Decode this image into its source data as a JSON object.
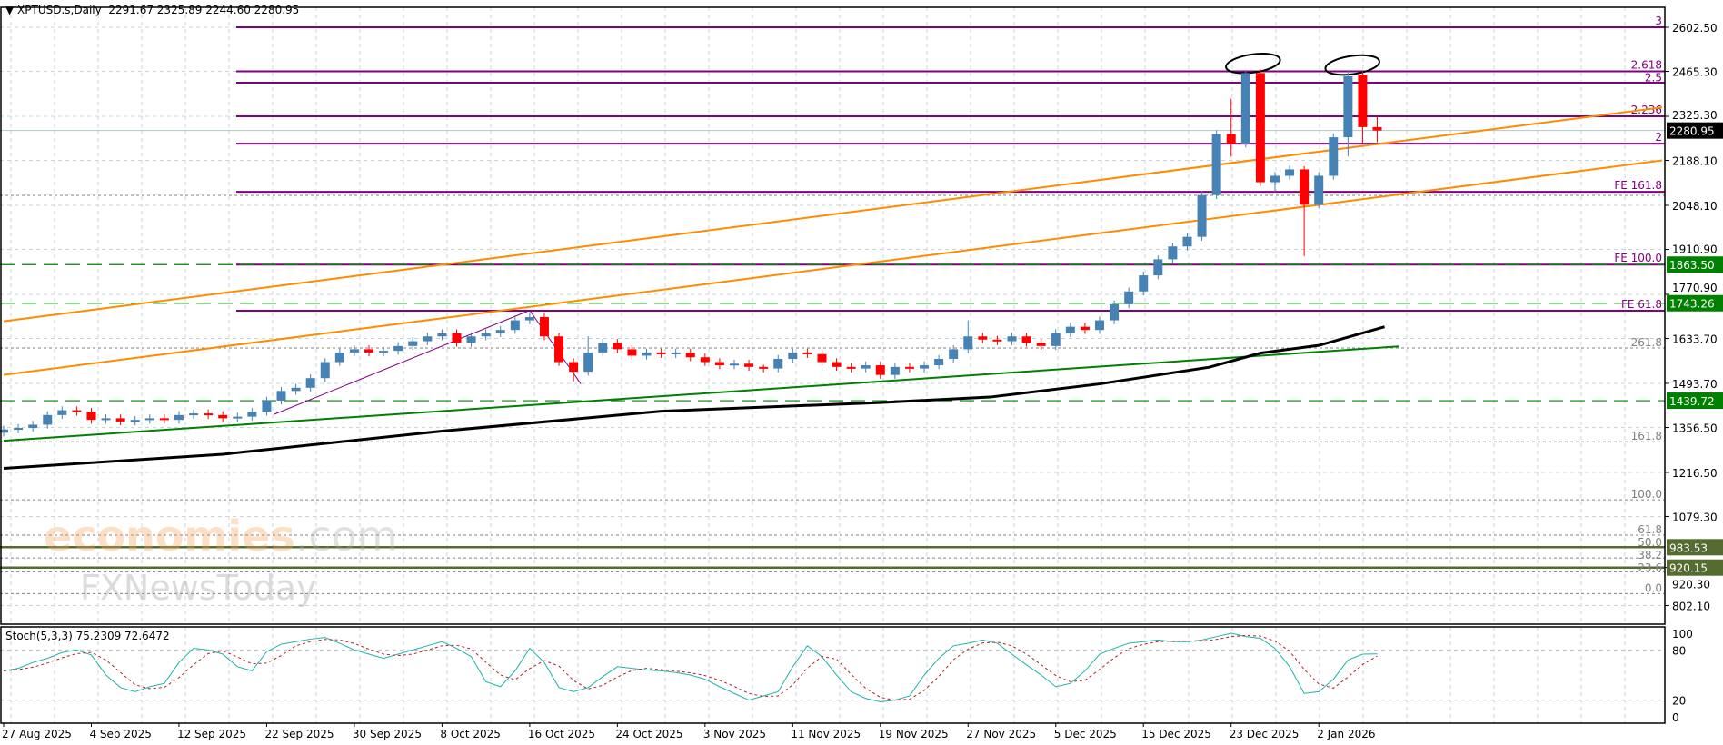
{
  "header": {
    "symbol": "XPTUSD.s,Daily",
    "ohlc_text": "2291.67 2325.89 2244.60 2280.95"
  },
  "stoch_header": {
    "label": "Stoch(5,3,3)",
    "main_value": "75.2309",
    "signal_value": "72.6472"
  },
  "watermark": {
    "line1": "economies.com",
    "line2": "FXNewsToday"
  },
  "colors": {
    "bull": "#4682b4",
    "bear": "#ff0000",
    "fib": "#800080",
    "trend": "#ff8c00",
    "support": "#008000",
    "ma": "#000000",
    "olive": "#556b2f",
    "stoch_main": "#20b2aa",
    "stoch_signal": "#b22222"
  },
  "chart_data": {
    "type": "candlestick",
    "title": "XPTUSD.s,Daily",
    "y_range": [
      760,
      2680
    ],
    "grid": true,
    "price_ticks": [
      "2602.50",
      "2465.30",
      "2325.30",
      "2188.10",
      "2048.10",
      "1910.90",
      "1770.90",
      "1633.70",
      "1493.70",
      "1356.50",
      "1216.50",
      "1079.30",
      "920.30",
      "802.10"
    ],
    "x_ticks": [
      {
        "bar": 0,
        "label": "27 Aug 2025"
      },
      {
        "bar": 6,
        "label": "4 Sep 2025"
      },
      {
        "bar": 12,
        "label": "12 Sep 2025"
      },
      {
        "bar": 18,
        "label": "22 Sep 2025"
      },
      {
        "bar": 24,
        "label": "30 Sep 2025"
      },
      {
        "bar": 30,
        "label": "8 Oct 2025"
      },
      {
        "bar": 36,
        "label": "16 Oct 2025"
      },
      {
        "bar": 42,
        "label": "24 Oct 2025"
      },
      {
        "bar": 48,
        "label": "3 Nov 2025"
      },
      {
        "bar": 54,
        "label": "11 Nov 2025"
      },
      {
        "bar": 60,
        "label": "19 Nov 2025"
      },
      {
        "bar": 66,
        "label": "27 Nov 2025"
      },
      {
        "bar": 72,
        "label": "5 Dec 2025"
      },
      {
        "bar": 78,
        "label": "15 Dec 2025"
      },
      {
        "bar": 84,
        "label": "23 Dec 2025"
      },
      {
        "bar": 90,
        "label": "2 Jan 2026"
      }
    ],
    "ohlc": [
      [
        1340,
        1362,
        1328,
        1350
      ],
      [
        1350,
        1367,
        1338,
        1355
      ],
      [
        1355,
        1377,
        1343,
        1365
      ],
      [
        1365,
        1407,
        1353,
        1395
      ],
      [
        1395,
        1422,
        1383,
        1410
      ],
      [
        1410,
        1422,
        1393,
        1405
      ],
      [
        1405,
        1417,
        1368,
        1380
      ],
      [
        1380,
        1397,
        1368,
        1385
      ],
      [
        1385,
        1397,
        1363,
        1375
      ],
      [
        1375,
        1392,
        1363,
        1380
      ],
      [
        1380,
        1397,
        1368,
        1385
      ],
      [
        1385,
        1397,
        1368,
        1380
      ],
      [
        1380,
        1407,
        1368,
        1395
      ],
      [
        1395,
        1412,
        1383,
        1400
      ],
      [
        1400,
        1412,
        1383,
        1395
      ],
      [
        1395,
        1407,
        1373,
        1385
      ],
      [
        1385,
        1402,
        1373,
        1390
      ],
      [
        1390,
        1417,
        1378,
        1405
      ],
      [
        1405,
        1452,
        1393,
        1440
      ],
      [
        1440,
        1482,
        1428,
        1470
      ],
      [
        1470,
        1492,
        1458,
        1480
      ],
      [
        1480,
        1522,
        1468,
        1510
      ],
      [
        1510,
        1572,
        1498,
        1560
      ],
      [
        1560,
        1602,
        1548,
        1590
      ],
      [
        1590,
        1612,
        1578,
        1600
      ],
      [
        1600,
        1612,
        1578,
        1590
      ],
      [
        1590,
        1607,
        1578,
        1595
      ],
      [
        1595,
        1622,
        1583,
        1610
      ],
      [
        1610,
        1637,
        1598,
        1625
      ],
      [
        1625,
        1652,
        1613,
        1640
      ],
      [
        1640,
        1662,
        1628,
        1650
      ],
      [
        1650,
        1662,
        1608,
        1620
      ],
      [
        1620,
        1652,
        1608,
        1640
      ],
      [
        1640,
        1662,
        1628,
        1650
      ],
      [
        1650,
        1672,
        1638,
        1660
      ],
      [
        1660,
        1702,
        1648,
        1690
      ],
      [
        1690,
        1715,
        1678,
        1700
      ],
      [
        1700,
        1712,
        1628,
        1640
      ],
      [
        1640,
        1652,
        1548,
        1560
      ],
      [
        1560,
        1572,
        1500,
        1530
      ],
      [
        1530,
        1640,
        1518,
        1590
      ],
      [
        1590,
        1632,
        1578,
        1620
      ],
      [
        1620,
        1632,
        1588,
        1600
      ],
      [
        1600,
        1612,
        1568,
        1580
      ],
      [
        1580,
        1602,
        1568,
        1590
      ],
      [
        1590,
        1602,
        1573,
        1585
      ],
      [
        1585,
        1602,
        1573,
        1590
      ],
      [
        1590,
        1602,
        1563,
        1575
      ],
      [
        1575,
        1587,
        1548,
        1560
      ],
      [
        1560,
        1572,
        1538,
        1550
      ],
      [
        1550,
        1567,
        1538,
        1555
      ],
      [
        1555,
        1567,
        1533,
        1545
      ],
      [
        1545,
        1552,
        1528,
        1540
      ],
      [
        1540,
        1582,
        1528,
        1570
      ],
      [
        1570,
        1602,
        1558,
        1590
      ],
      [
        1590,
        1602,
        1573,
        1585
      ],
      [
        1585,
        1597,
        1548,
        1560
      ],
      [
        1560,
        1572,
        1533,
        1545
      ],
      [
        1545,
        1557,
        1528,
        1540
      ],
      [
        1540,
        1562,
        1528,
        1550
      ],
      [
        1550,
        1562,
        1508,
        1520
      ],
      [
        1520,
        1557,
        1508,
        1545
      ],
      [
        1545,
        1557,
        1528,
        1540
      ],
      [
        1540,
        1562,
        1528,
        1550
      ],
      [
        1550,
        1582,
        1538,
        1570
      ],
      [
        1570,
        1612,
        1558,
        1600
      ],
      [
        1600,
        1690,
        1588,
        1640
      ],
      [
        1640,
        1652,
        1618,
        1630
      ],
      [
        1630,
        1642,
        1613,
        1625
      ],
      [
        1625,
        1652,
        1613,
        1640
      ],
      [
        1640,
        1652,
        1608,
        1620
      ],
      [
        1620,
        1632,
        1598,
        1610
      ],
      [
        1610,
        1662,
        1598,
        1650
      ],
      [
        1650,
        1682,
        1638,
        1670
      ],
      [
        1670,
        1682,
        1648,
        1660
      ],
      [
        1660,
        1702,
        1648,
        1690
      ],
      [
        1690,
        1752,
        1678,
        1740
      ],
      [
        1740,
        1792,
        1728,
        1780
      ],
      [
        1780,
        1842,
        1768,
        1830
      ],
      [
        1830,
        1892,
        1818,
        1880
      ],
      [
        1880,
        1932,
        1868,
        1920
      ],
      [
        1920,
        1962,
        1908,
        1950
      ],
      [
        1950,
        2092,
        1938,
        2080
      ],
      [
        2080,
        2282,
        2068,
        2270
      ],
      [
        2270,
        2380,
        2200,
        2240
      ],
      [
        2240,
        2470,
        2228,
        2460
      ],
      [
        2460,
        2472,
        2108,
        2120
      ],
      [
        2120,
        2152,
        2090,
        2140
      ],
      [
        2140,
        2172,
        2128,
        2160
      ],
      [
        2160,
        2170,
        1890,
        2050
      ],
      [
        2050,
        2152,
        2038,
        2140
      ],
      [
        2140,
        2272,
        2128,
        2260
      ],
      [
        2260,
        2470,
        2200,
        2450
      ],
      [
        2455,
        2465,
        2240,
        2291.67
      ],
      [
        2291.67,
        2325.89,
        2244.6,
        2280.95
      ]
    ],
    "current_price": "2280.95",
    "fib_expansion_levels": [
      {
        "label": "3",
        "price": 2602.5
      },
      {
        "label": "2.618",
        "price": 2465.3
      },
      {
        "label": "2.5",
        "price": 2430
      },
      {
        "label": "2.236",
        "price": 2325.3
      },
      {
        "label": "2",
        "price": 2240
      },
      {
        "label": "FE 161.8",
        "price": 2090
      },
      {
        "label": "FE 100.0",
        "price": 1863.5
      },
      {
        "label": "FE 61.8",
        "price": 1720
      }
    ],
    "fib_retracement_levels": [
      {
        "label": "",
        "price": 2079
      },
      {
        "label": "261.8",
        "price": 1604
      },
      {
        "label": "161.8",
        "price": 1312
      },
      {
        "label": "100.0",
        "price": 1131
      },
      {
        "label": "61.8",
        "price": 1021
      },
      {
        "label": "50.0",
        "price": 984
      },
      {
        "label": "38.2",
        "price": 950
      },
      {
        "label": "23.6",
        "price": 907
      },
      {
        "label": "0.0",
        "price": 839
      }
    ],
    "horizontal_levels": [
      {
        "price": 1863.5,
        "label": "1863.50",
        "style": "dashed",
        "color": "#008000"
      },
      {
        "price": 1743.26,
        "label": "1743.26",
        "style": "dashed",
        "color": "#008000"
      },
      {
        "price": 1439.72,
        "label": "1439.72",
        "style": "dashed",
        "color": "#008000"
      },
      {
        "price": 983.53,
        "label": "983.53",
        "style": "solid",
        "color": "#556b2f"
      },
      {
        "price": 920.15,
        "label": "920.15",
        "style": "solid",
        "color": "#556b2f"
      }
    ],
    "trendlines": [
      {
        "name": "channel-upper",
        "from": [
          0,
          1687
        ],
        "to": [
          113.5,
          2353
        ],
        "color": "#ff8c00"
      },
      {
        "name": "channel-lower",
        "from": [
          0,
          1520
        ],
        "to": [
          113.5,
          2188
        ],
        "color": "#ff8c00"
      },
      {
        "name": "support",
        "from": [
          0,
          1315
        ],
        "to": [
          95.5,
          1609
        ],
        "color": "#008000"
      },
      {
        "name": "fe-leg-1",
        "from": [
          18.5,
          1397
        ],
        "to": [
          36,
          1721
        ],
        "color": "#800080"
      },
      {
        "name": "fe-leg-2",
        "from": [
          36,
          1721
        ],
        "to": [
          39.5,
          1492
        ],
        "color": "#800080"
      }
    ],
    "moving_average": [
      [
        0,
        1229
      ],
      [
        15,
        1273
      ],
      [
        30,
        1345
      ],
      [
        45,
        1407
      ],
      [
        60,
        1434
      ],
      [
        67.5,
        1451
      ],
      [
        75,
        1492
      ],
      [
        82.5,
        1544
      ],
      [
        86,
        1588
      ],
      [
        90,
        1612
      ],
      [
        94.5,
        1670
      ]
    ],
    "highlight_ellipses": [
      {
        "bar": 85.5,
        "price": 2490
      },
      {
        "bar": 92.3,
        "price": 2485
      }
    ],
    "stochastic": {
      "params": "5,3,3",
      "levels": [
        20,
        80
      ],
      "y_ticks": [
        "100",
        "80",
        "20",
        "0"
      ],
      "main": [
        55,
        58,
        65,
        70,
        77,
        80,
        74,
        50,
        35,
        30,
        36,
        40,
        65,
        82,
        80,
        75,
        60,
        55,
        78,
        87,
        90,
        93,
        95,
        88,
        80,
        75,
        70,
        75,
        80,
        85,
        90,
        82,
        72,
        42,
        36,
        55,
        82,
        65,
        35,
        30,
        35,
        48,
        60,
        58,
        56,
        55,
        53,
        50,
        45,
        36,
        28,
        20,
        25,
        30,
        60,
        85,
        72,
        50,
        30,
        22,
        18,
        20,
        25,
        50,
        70,
        85,
        88,
        92,
        88,
        75,
        62,
        50,
        36,
        40,
        55,
        75,
        82,
        88,
        90,
        92,
        90,
        90,
        92,
        96,
        100,
        96,
        94,
        82,
        60,
        28,
        30,
        45,
        68,
        75,
        75.23
      ]
    }
  }
}
